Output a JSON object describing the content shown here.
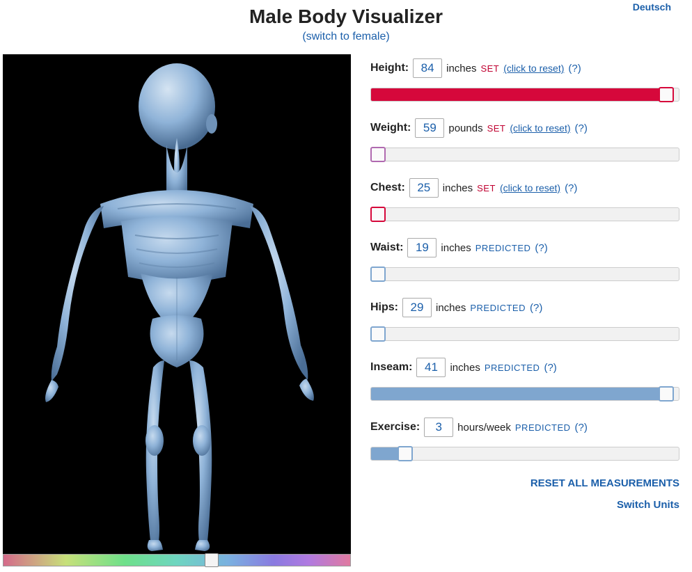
{
  "lang_link": "Deutsch",
  "title": "Male Body Visualizer",
  "subtitle": "(switch to female)",
  "colors": {
    "link": "#1b5faa",
    "set": "#c00030",
    "predicted": "#6a93cc",
    "slider_bg": "#f1f1f1",
    "slider_border": "#cccccc",
    "viz_bg": "#000000",
    "body_fill": "#7fa6cf",
    "body_highlight": "#b9d0e6"
  },
  "spectrum_thumb_pct": 60,
  "measurements": [
    {
      "key": "height",
      "label": "Height:",
      "value": "84",
      "unit": "inches",
      "status": "SET",
      "reset": true,
      "fill_pct": 96,
      "thumb_pct": 96,
      "fill_color": "#d6083b",
      "thumb_border": "#d6083b"
    },
    {
      "key": "weight",
      "label": "Weight:",
      "value": "59",
      "unit": "pounds",
      "status": "SET",
      "reset": true,
      "fill_pct": 0,
      "thumb_pct": 0,
      "fill_color": "#d6083b",
      "thumb_border": "#b06ab0"
    },
    {
      "key": "chest",
      "label": "Chest:",
      "value": "25",
      "unit": "inches",
      "status": "SET",
      "reset": true,
      "fill_pct": 0,
      "thumb_pct": 0,
      "fill_color": "#d6083b",
      "thumb_border": "#d6083b"
    },
    {
      "key": "waist",
      "label": "Waist:",
      "value": "19",
      "unit": "inches",
      "status": "PREDICTED",
      "reset": false,
      "fill_pct": 0,
      "thumb_pct": 1,
      "fill_color": "#7fa6cf",
      "thumb_border": "#7fa6cf"
    },
    {
      "key": "hips",
      "label": "Hips:",
      "value": "29",
      "unit": "inches",
      "status": "PREDICTED",
      "reset": false,
      "fill_pct": 0,
      "thumb_pct": 1,
      "fill_color": "#7fa6cf",
      "thumb_border": "#7fa6cf"
    },
    {
      "key": "inseam",
      "label": "Inseam:",
      "value": "41",
      "unit": "inches",
      "status": "PREDICTED",
      "reset": false,
      "fill_pct": 96,
      "thumb_pct": 96,
      "fill_color": "#7fa6cf",
      "thumb_border": "#7fa6cf"
    },
    {
      "key": "exercise",
      "label": "Exercise:",
      "value": "3",
      "unit": "hours/week",
      "status": "PREDICTED",
      "reset": false,
      "fill_pct": 11,
      "thumb_pct": 11,
      "fill_color": "#7fa6cf",
      "thumb_border": "#7fa6cf"
    }
  ],
  "reset_text": "(click to reset)",
  "help_text": "(?)",
  "reset_all": "RESET ALL MEASUREMENTS",
  "switch_units": "Switch Units"
}
